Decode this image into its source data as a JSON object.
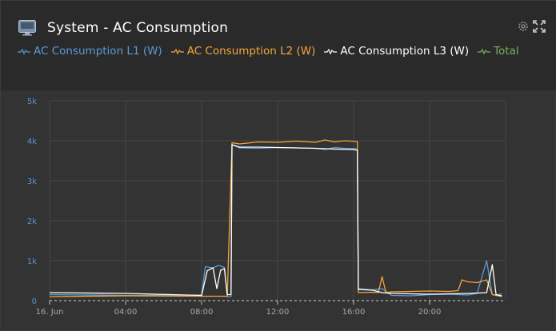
{
  "header": {
    "title": "System - AC Consumption",
    "icon": "monitor-icon",
    "tools": [
      "gear-icon",
      "expand-icon"
    ]
  },
  "legend": [
    {
      "label": "AC Consumption L1 (W)",
      "color": "#5b9bd5"
    },
    {
      "label": "AC Consumption L2 (W)",
      "color": "#f5a53a"
    },
    {
      "label": "AC Consumption L3 (W)",
      "color": "#ffffff"
    },
    {
      "label": "Total",
      "color": "#7fae5a"
    }
  ],
  "colors": {
    "background": "#333333",
    "header": "#2a2a2a",
    "grid": "#474747",
    "y_tick": "#5b95d0"
  },
  "chart_data": {
    "type": "line",
    "y_ticks": [
      "0",
      "1k",
      "2k",
      "3k",
      "4k",
      "5k"
    ],
    "ylim": [
      0,
      5000
    ],
    "x_ticks": [
      {
        "label": "16. Jun",
        "hour": 0
      },
      {
        "label": "04:00",
        "hour": 4
      },
      {
        "label": "08:00",
        "hour": 8
      },
      {
        "label": "12:00",
        "hour": 12
      },
      {
        "label": "16:00",
        "hour": 16
      },
      {
        "label": "20:00",
        "hour": 20
      }
    ],
    "xlim_hours": [
      0,
      24
    ],
    "grid": true,
    "series": [
      {
        "name": "AC Consumption L1 (W)",
        "color": "#5b9bd5",
        "points": [
          [
            0,
            150
          ],
          [
            4,
            130
          ],
          [
            8,
            140
          ],
          [
            8.2,
            850
          ],
          [
            8.6,
            820
          ],
          [
            8.9,
            880
          ],
          [
            9.2,
            830
          ],
          [
            9.35,
            100
          ],
          [
            9.55,
            100
          ],
          [
            9.6,
            3900
          ],
          [
            10,
            3820
          ],
          [
            11,
            3810
          ],
          [
            12,
            3830
          ],
          [
            13,
            3820
          ],
          [
            14,
            3810
          ],
          [
            14.5,
            3780
          ],
          [
            15,
            3830
          ],
          [
            15.5,
            3810
          ],
          [
            16.2,
            3800
          ],
          [
            16.25,
            300
          ],
          [
            17,
            270
          ],
          [
            17.5,
            300
          ],
          [
            18,
            130
          ],
          [
            19,
            120
          ],
          [
            20,
            150
          ],
          [
            21,
            160
          ],
          [
            22,
            140
          ],
          [
            22.5,
            180
          ],
          [
            23,
            1000
          ],
          [
            23.3,
            150
          ],
          [
            23.6,
            140
          ],
          [
            23.8,
            180
          ]
        ]
      },
      {
        "name": "AC Consumption L2 (W)",
        "color": "#f5a53a",
        "points": [
          [
            0,
            100
          ],
          [
            4,
            120
          ],
          [
            8,
            110
          ],
          [
            9.35,
            110
          ],
          [
            9.6,
            3950
          ],
          [
            10,
            3920
          ],
          [
            11,
            3970
          ],
          [
            12,
            3960
          ],
          [
            13,
            3990
          ],
          [
            14,
            3960
          ],
          [
            14.5,
            4020
          ],
          [
            15,
            3970
          ],
          [
            15.5,
            4000
          ],
          [
            16.2,
            3980
          ],
          [
            16.25,
            200
          ],
          [
            17,
            210
          ],
          [
            17.3,
            200
          ],
          [
            17.5,
            600
          ],
          [
            17.7,
            200
          ],
          [
            18,
            220
          ],
          [
            19,
            230
          ],
          [
            20,
            240
          ],
          [
            21,
            230
          ],
          [
            21.5,
            250
          ],
          [
            21.7,
            520
          ],
          [
            22,
            470
          ],
          [
            22.5,
            450
          ],
          [
            23,
            520
          ],
          [
            23.3,
            150
          ],
          [
            23.8,
            100
          ]
        ]
      },
      {
        "name": "AC Consumption L3 (W)",
        "color": "#ffffff",
        "points": [
          [
            0,
            200
          ],
          [
            4,
            180
          ],
          [
            8,
            130
          ],
          [
            8.3,
            750
          ],
          [
            8.6,
            820
          ],
          [
            8.8,
            300
          ],
          [
            9,
            760
          ],
          [
            9.2,
            800
          ],
          [
            9.35,
            150
          ],
          [
            9.55,
            150
          ],
          [
            9.6,
            3900
          ],
          [
            10,
            3840
          ],
          [
            11,
            3840
          ],
          [
            12,
            3830
          ],
          [
            13,
            3820
          ],
          [
            14,
            3810
          ],
          [
            15,
            3790
          ],
          [
            16,
            3780
          ],
          [
            16.2,
            3760
          ],
          [
            16.25,
            280
          ],
          [
            17,
            260
          ],
          [
            17.5,
            200
          ],
          [
            18,
            180
          ],
          [
            19,
            170
          ],
          [
            20,
            160
          ],
          [
            21,
            170
          ],
          [
            22,
            180
          ],
          [
            23,
            200
          ],
          [
            23.3,
            900
          ],
          [
            23.5,
            150
          ],
          [
            23.8,
            120
          ]
        ]
      }
    ]
  }
}
